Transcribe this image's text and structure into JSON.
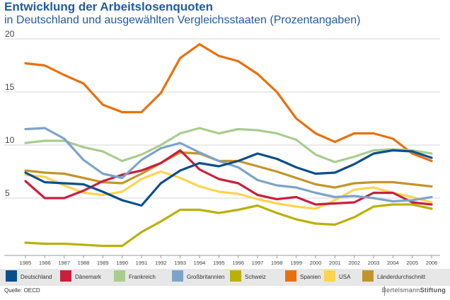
{
  "chart_data": {
    "type": "line",
    "title": "Entwicklung der Arbeitslosenquoten",
    "subtitle": "in Deutschland und ausgewählten Vergleichsstaaten (Prozentangaben)",
    "x": [
      1985,
      1986,
      1987,
      1988,
      1989,
      1990,
      1991,
      1992,
      1993,
      1994,
      1995,
      1996,
      1997,
      1998,
      1999,
      2000,
      2001,
      2002,
      2003,
      2004,
      2005,
      2006
    ],
    "ylim": [
      0,
      20
    ],
    "yticks": [
      5,
      10,
      15,
      20
    ],
    "grid": true,
    "legend_placement": "bottom",
    "series": [
      {
        "name": "Deutschland",
        "color": "#0b4f8a",
        "values": [
          7.4,
          6.5,
          6.4,
          6.3,
          5.6,
          4.8,
          4.3,
          6.4,
          7.6,
          8.3,
          8.0,
          8.5,
          9.2,
          8.7,
          7.9,
          7.3,
          7.4,
          8.2,
          9.2,
          9.5,
          9.4,
          8.8
        ]
      },
      {
        "name": "Dänemark",
        "color": "#c8203e",
        "values": [
          6.6,
          5.0,
          5.0,
          5.7,
          6.6,
          7.2,
          7.6,
          8.3,
          9.5,
          7.7,
          6.8,
          6.4,
          5.3,
          4.9,
          5.1,
          4.4,
          4.5,
          4.6,
          5.5,
          5.5,
          4.6,
          4.4
        ]
      },
      {
        "name": "Frankreich",
        "color": "#a9cc8f",
        "values": [
          10.2,
          10.4,
          10.4,
          9.8,
          9.4,
          8.5,
          9.1,
          10.0,
          11.1,
          11.6,
          11.1,
          11.5,
          11.4,
          11.1,
          10.5,
          9.1,
          8.4,
          8.9,
          9.5,
          9.6,
          9.5,
          9.2
        ]
      },
      {
        "name": "Großbritannien",
        "color": "#7da4c8",
        "values": [
          11.5,
          11.6,
          10.6,
          8.6,
          7.3,
          6.9,
          8.6,
          9.7,
          10.2,
          9.3,
          8.5,
          7.9,
          6.7,
          6.2,
          6.0,
          5.5,
          5.1,
          5.2,
          5.0,
          4.7,
          4.8,
          5.1
        ]
      },
      {
        "name": "Schweiz",
        "color": "#b9b10a",
        "values": [
          0.8,
          0.7,
          0.7,
          0.6,
          0.5,
          0.5,
          1.8,
          2.8,
          3.9,
          3.9,
          3.6,
          3.9,
          4.3,
          3.6,
          3.0,
          2.6,
          2.5,
          3.2,
          4.2,
          4.4,
          4.4,
          4.0
        ]
      },
      {
        "name": "Spanien",
        "color": "#e8700e",
        "values": [
          17.7,
          17.5,
          16.6,
          15.8,
          13.8,
          13.1,
          13.1,
          14.9,
          18.2,
          19.5,
          18.4,
          17.9,
          16.7,
          15.0,
          12.5,
          11.1,
          10.3,
          11.1,
          11.1,
          10.6,
          9.2,
          8.5
        ]
      },
      {
        "name": "USA",
        "color": "#fcd451",
        "values": [
          7.2,
          7.0,
          6.2,
          5.5,
          5.3,
          5.6,
          6.8,
          7.5,
          6.9,
          6.1,
          5.6,
          5.4,
          4.9,
          4.5,
          4.2,
          4.0,
          4.8,
          5.8,
          6.0,
          5.5,
          5.1,
          4.6
        ]
      },
      {
        "name": "Länderdurchschnitt",
        "color": "#c2952c",
        "values": [
          7.6,
          7.4,
          7.3,
          6.9,
          6.5,
          6.4,
          7.3,
          8.3,
          9.3,
          9.2,
          8.5,
          8.5,
          8.0,
          7.5,
          6.9,
          6.3,
          6.0,
          6.4,
          6.5,
          6.5,
          6.3,
          6.1
        ]
      }
    ]
  },
  "footer": {
    "source": "Quelle: OECD",
    "brand_light": "Bertelsmann",
    "brand_strong": "Stiftung"
  }
}
